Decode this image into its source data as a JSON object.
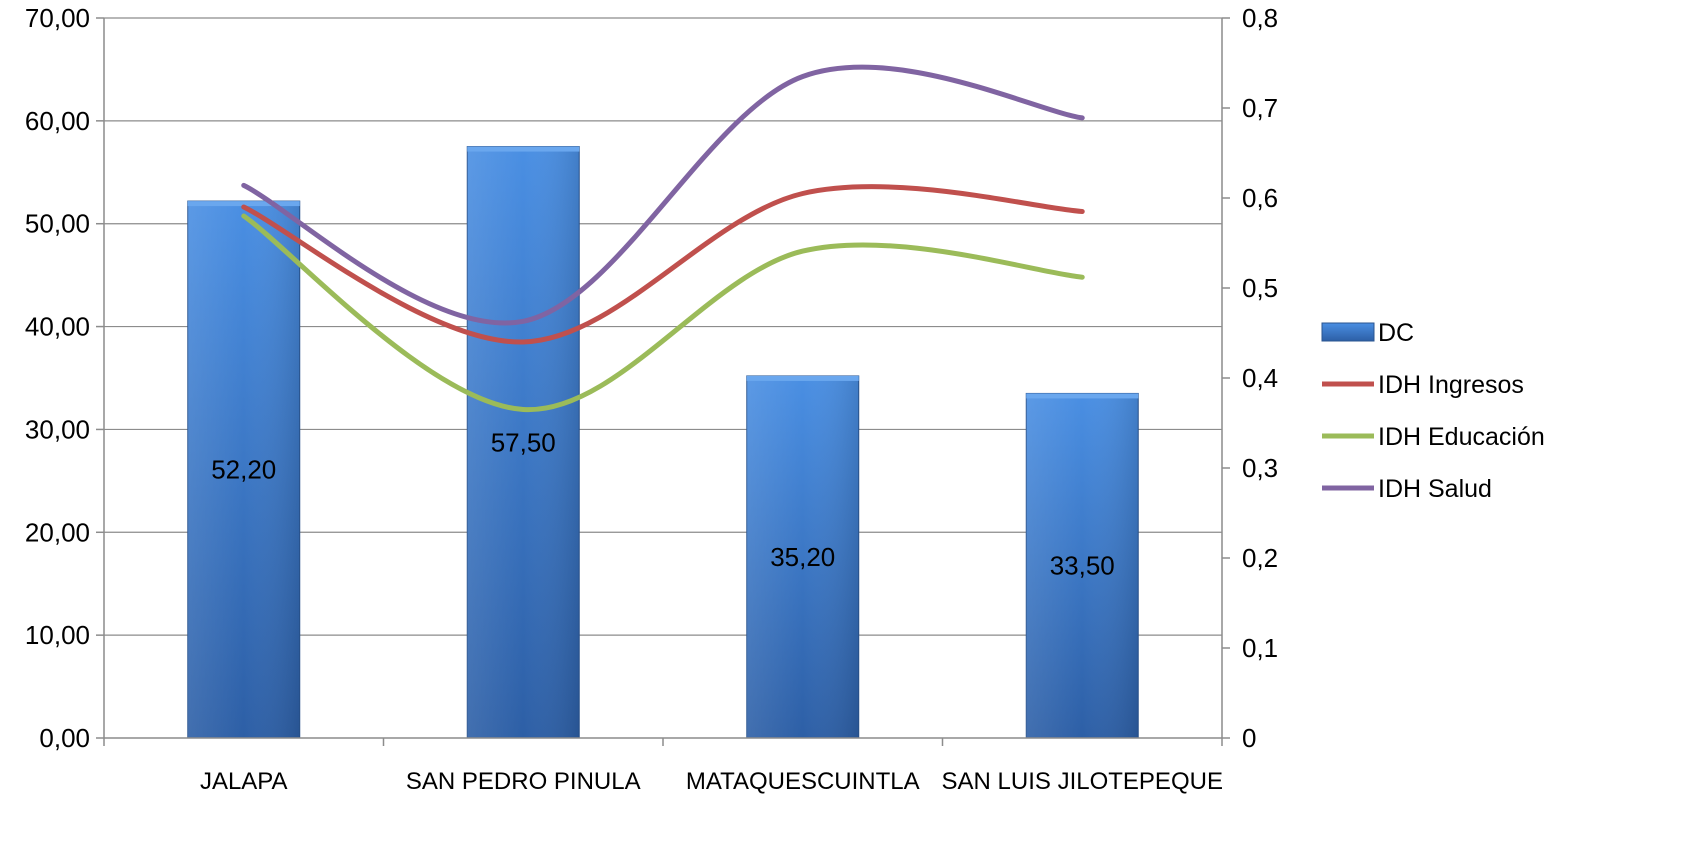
{
  "chart_data": {
    "type": "bar",
    "categories": [
      "JALAPA",
      "SAN PEDRO PINULA",
      "MATAQUESCUINTLA",
      "SAN LUIS JILOTEPEQUE"
    ],
    "bar_series": {
      "name": "DC",
      "values": [
        52.2,
        57.5,
        35.2,
        33.5
      ],
      "data_labels": [
        "52,20",
        "57,50",
        "35,20",
        "33,50"
      ],
      "color": "#3b7dd0"
    },
    "line_series": [
      {
        "name": "IDH Ingresos",
        "values": [
          0.59,
          0.44,
          0.605,
          0.585
        ],
        "color": "#c0504d"
      },
      {
        "name": "IDH Educación",
        "values": [
          0.58,
          0.365,
          0.541,
          0.512
        ],
        "color": "#9bbb59"
      },
      {
        "name": "IDH Salud",
        "values": [
          0.614,
          0.463,
          0.735,
          0.689
        ],
        "color": "#8064a2"
      }
    ],
    "y_left": {
      "ylim": [
        0,
        70
      ],
      "ticks": [
        0,
        10,
        20,
        30,
        40,
        50,
        60,
        70
      ],
      "tick_labels": [
        "0,00",
        "10,00",
        "20,00",
        "30,00",
        "40,00",
        "50,00",
        "60,00",
        "70,00"
      ]
    },
    "y_right": {
      "ylim": [
        0,
        0.8
      ],
      "ticks": [
        0,
        0.1,
        0.2,
        0.3,
        0.4,
        0.5,
        0.6,
        0.7,
        0.8
      ],
      "tick_labels": [
        "0",
        "0,1",
        "0,2",
        "0,3",
        "0,4",
        "0,5",
        "0,6",
        "0,7",
        "0,8"
      ]
    },
    "grid": true,
    "legend_position": "right"
  }
}
